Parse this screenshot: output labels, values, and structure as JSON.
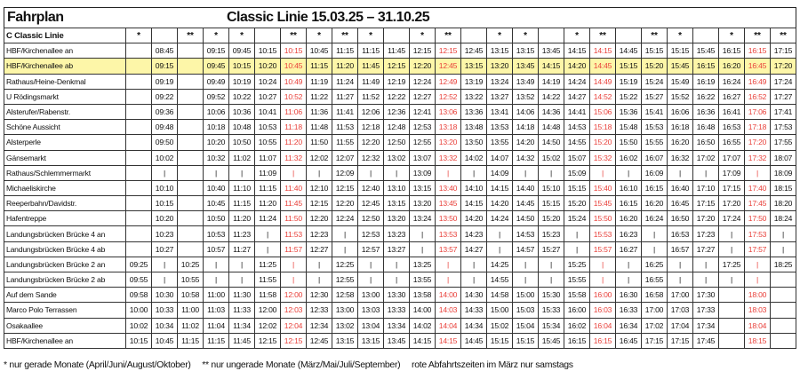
{
  "header": {
    "title": "Fahrplan",
    "subtitle": "Classic Linie 15.03.25 – 31.10.25"
  },
  "table": {
    "line_label": "C Classic Linie",
    "markers": [
      "*",
      null,
      "**",
      "*",
      "*",
      null,
      "**",
      "*",
      "**",
      "*",
      null,
      "*",
      "**",
      null,
      "*",
      "*",
      null,
      "*",
      "**",
      null,
      "**",
      "*",
      null,
      "*",
      "**",
      "**"
    ],
    "red_columns": [
      6,
      12,
      18,
      24
    ],
    "red_color": "#e8403a",
    "highlight_row": 1,
    "highlight_color": "#fdf6a8",
    "rows": [
      {
        "stop": "HBF/Kirchenallee  an",
        "times": [
          null,
          "08:45",
          null,
          "09:15",
          "09:45",
          "10:15",
          "10:15",
          "10:45",
          "11:15",
          "11:15",
          "11:45",
          "12:15",
          "12:15",
          "12:45",
          "13:15",
          "13:15",
          "13:45",
          "14:15",
          "14:15",
          "14:45",
          "15:15",
          "15:15",
          "15:45",
          "16:15",
          "16:15",
          "17:15"
        ]
      },
      {
        "stop": "HBF/Kirchenallee  ab",
        "times": [
          null,
          "09:15",
          null,
          "09:45",
          "10:15",
          "10:20",
          "10:45",
          "11:15",
          "11:20",
          "11:45",
          "12:15",
          "12:20",
          "12:45",
          "13:15",
          "13:20",
          "13:45",
          "14:15",
          "14:20",
          "14:45",
          "15:15",
          "15:20",
          "15:45",
          "16:15",
          "16:20",
          "16:45",
          "17:20"
        ]
      },
      {
        "stop": "Rathaus/Heine-Denkmal",
        "times": [
          null,
          "09:19",
          null,
          "09:49",
          "10:19",
          "10:24",
          "10:49",
          "11:19",
          "11:24",
          "11:49",
          "12:19",
          "12:24",
          "12:49",
          "13:19",
          "13:24",
          "13:49",
          "14:19",
          "14:24",
          "14:49",
          "15:19",
          "15:24",
          "15:49",
          "16:19",
          "16:24",
          "16:49",
          "17:24"
        ]
      },
      {
        "stop": "U Rödingsmarkt",
        "times": [
          null,
          "09:22",
          null,
          "09:52",
          "10:22",
          "10:27",
          "10:52",
          "11:22",
          "11:27",
          "11:52",
          "12:22",
          "12:27",
          "12:52",
          "13:22",
          "13:27",
          "13:52",
          "14:22",
          "14:27",
          "14:52",
          "15:22",
          "15:27",
          "15:52",
          "16:22",
          "16:27",
          "16:52",
          "17:27"
        ]
      },
      {
        "stop": "Alsterufer/Rabenstr.",
        "times": [
          null,
          "09:36",
          null,
          "10:06",
          "10:36",
          "10:41",
          "11:06",
          "11:36",
          "11:41",
          "12:06",
          "12:36",
          "12:41",
          "13:06",
          "13:36",
          "13:41",
          "14:06",
          "14:36",
          "14:41",
          "15:06",
          "15:36",
          "15:41",
          "16:06",
          "16:36",
          "16:41",
          "17:06",
          "17:41"
        ]
      },
      {
        "stop": "Schöne Aussicht",
        "times": [
          null,
          "09:48",
          null,
          "10:18",
          "10:48",
          "10:53",
          "11:18",
          "11:48",
          "11:53",
          "12:18",
          "12:48",
          "12:53",
          "13:18",
          "13:48",
          "13:53",
          "14:18",
          "14:48",
          "14:53",
          "15:18",
          "15:48",
          "15:53",
          "16:18",
          "16:48",
          "16:53",
          "17:18",
          "17:53"
        ]
      },
      {
        "stop": "Alsterperle",
        "times": [
          null,
          "09:50",
          null,
          "10:20",
          "10:50",
          "10:55",
          "11:20",
          "11:50",
          "11:55",
          "12:20",
          "12:50",
          "12:55",
          "13:20",
          "13:50",
          "13:55",
          "14:20",
          "14:50",
          "14:55",
          "15:20",
          "15:50",
          "15:55",
          "16:20",
          "16:50",
          "16:55",
          "17:20",
          "17:55"
        ]
      },
      {
        "stop": "Gänsemarkt",
        "times": [
          null,
          "10:02",
          null,
          "10:32",
          "11:02",
          "11:07",
          "11:32",
          "12:02",
          "12:07",
          "12:32",
          "13:02",
          "13:07",
          "13:32",
          "14:02",
          "14:07",
          "14:32",
          "15:02",
          "15:07",
          "15:32",
          "16:02",
          "16:07",
          "16:32",
          "17:02",
          "17:07",
          "17:32",
          "18:07"
        ]
      },
      {
        "stop": "Rathaus/Schlemmermarkt",
        "times": [
          null,
          "|",
          null,
          "|",
          "|",
          "11:09",
          "|",
          "|",
          "12:09",
          "|",
          "|",
          "13:09",
          "|",
          "|",
          "14:09",
          "|",
          "|",
          "15:09",
          "|",
          "|",
          "16:09",
          "|",
          "|",
          "17:09",
          "|",
          "18:09"
        ]
      },
      {
        "stop": "Michaeliskirche",
        "times": [
          null,
          "10:10",
          null,
          "10:40",
          "11:10",
          "11:15",
          "11:40",
          "12:10",
          "12:15",
          "12:40",
          "13:10",
          "13:15",
          "13:40",
          "14:10",
          "14:15",
          "14:40",
          "15:10",
          "15:15",
          "15:40",
          "16:10",
          "16:15",
          "16:40",
          "17:10",
          "17:15",
          "17:40",
          "18:15"
        ]
      },
      {
        "stop": "Reeperbahn/Davidstr.",
        "times": [
          null,
          "10:15",
          null,
          "10:45",
          "11:15",
          "11:20",
          "11:45",
          "12:15",
          "12:20",
          "12:45",
          "13:15",
          "13:20",
          "13:45",
          "14:15",
          "14:20",
          "14:45",
          "15:15",
          "15:20",
          "15:45",
          "16:15",
          "16:20",
          "16:45",
          "17:15",
          "17:20",
          "17:45",
          "18:20"
        ]
      },
      {
        "stop": "Hafentreppe",
        "times": [
          null,
          "10:20",
          null,
          "10:50",
          "11:20",
          "11:24",
          "11:50",
          "12:20",
          "12:24",
          "12:50",
          "13:20",
          "13:24",
          "13:50",
          "14:20",
          "14:24",
          "14:50",
          "15:20",
          "15:24",
          "15:50",
          "16:20",
          "16:24",
          "16:50",
          "17:20",
          "17:24",
          "17:50",
          "18:24"
        ]
      },
      {
        "stop": "Landungsbrücken Brücke 4 an",
        "times": [
          null,
          "10:23",
          null,
          "10:53",
          "11:23",
          "|",
          "11:53",
          "12:23",
          "|",
          "12:53",
          "13:23",
          "|",
          "13:53",
          "14:23",
          "|",
          "14:53",
          "15:23",
          "|",
          "15:53",
          "16:23",
          "|",
          "16:53",
          "17:23",
          "|",
          "17:53",
          "|"
        ]
      },
      {
        "stop": "Landungsbrücken Brücke 4 ab",
        "times": [
          null,
          "10:27",
          null,
          "10:57",
          "11:27",
          "|",
          "11:57",
          "12:27",
          "|",
          "12:57",
          "13:27",
          "|",
          "13:57",
          "14:27",
          "|",
          "14:57",
          "15:27",
          "|",
          "15:57",
          "16:27",
          "|",
          "16:57",
          "17:27",
          "|",
          "17:57",
          "|"
        ]
      },
      {
        "stop": "Landungsbrücken Brücke 2 an",
        "times": [
          "09:25",
          "|",
          "10:25",
          "|",
          "|",
          "11:25",
          "|",
          "|",
          "12:25",
          "|",
          "|",
          "13:25",
          "|",
          "|",
          "14:25",
          "|",
          "|",
          "15:25",
          "|",
          "|",
          "16:25",
          "|",
          "|",
          "17:25",
          "|",
          "18:25"
        ]
      },
      {
        "stop": "Landungsbrücken Brücke 2 ab",
        "times": [
          "09:55",
          "|",
          "10:55",
          "|",
          "|",
          "11:55",
          "|",
          "|",
          "12:55",
          "|",
          "|",
          "13:55",
          "|",
          "|",
          "14:55",
          "|",
          "|",
          "15:55",
          "|",
          "|",
          "16:55",
          "|",
          "|",
          "|",
          "|",
          null
        ]
      },
      {
        "stop": "Auf dem Sande",
        "times": [
          "09:58",
          "10:30",
          "10:58",
          "11:00",
          "11:30",
          "11:58",
          "12:00",
          "12:30",
          "12:58",
          "13:00",
          "13:30",
          "13:58",
          "14:00",
          "14:30",
          "14:58",
          "15:00",
          "15:30",
          "15:58",
          "16:00",
          "16:30",
          "16:58",
          "17:00",
          "17:30",
          null,
          "18:00",
          null
        ]
      },
      {
        "stop": "Marco Polo Terrassen",
        "times": [
          "10:00",
          "10:33",
          "11:00",
          "11:03",
          "11:33",
          "12:00",
          "12:03",
          "12:33",
          "13:00",
          "13:03",
          "13:33",
          "14:00",
          "14:03",
          "14:33",
          "15:00",
          "15:03",
          "15:33",
          "16:00",
          "16:03",
          "16:33",
          "17:00",
          "17:03",
          "17:33",
          null,
          "18:03",
          null
        ]
      },
      {
        "stop": "Osakaallee",
        "times": [
          "10:02",
          "10:34",
          "11:02",
          "11:04",
          "11:34",
          "12:02",
          "12:04",
          "12:34",
          "13:02",
          "13:04",
          "13:34",
          "14:02",
          "14:04",
          "14:34",
          "15:02",
          "15:04",
          "15:34",
          "16:02",
          "16:04",
          "16:34",
          "17:02",
          "17:04",
          "17:34",
          null,
          "18:04",
          null
        ]
      },
      {
        "stop": "HBF/Kirchenallee an",
        "times": [
          "10:15",
          "10:45",
          "11:15",
          "11:15",
          "11:45",
          "12:15",
          "12:15",
          "12:45",
          "13:15",
          "13:15",
          "13:45",
          "14:15",
          "14:15",
          "14:45",
          "15:15",
          "15:15",
          "15:45",
          "16:15",
          "16:15",
          "16:45",
          "17:15",
          "17:15",
          "17:45",
          null,
          "18:15",
          null
        ]
      }
    ]
  },
  "footer": {
    "note_single": "* nur gerade Monate (April/Juni/August/Oktober)",
    "note_double": "** nur ungerade Monate (März/Mai/Juli/September)",
    "note_red": "rote Abfahrtszeiten im März nur samstags"
  }
}
